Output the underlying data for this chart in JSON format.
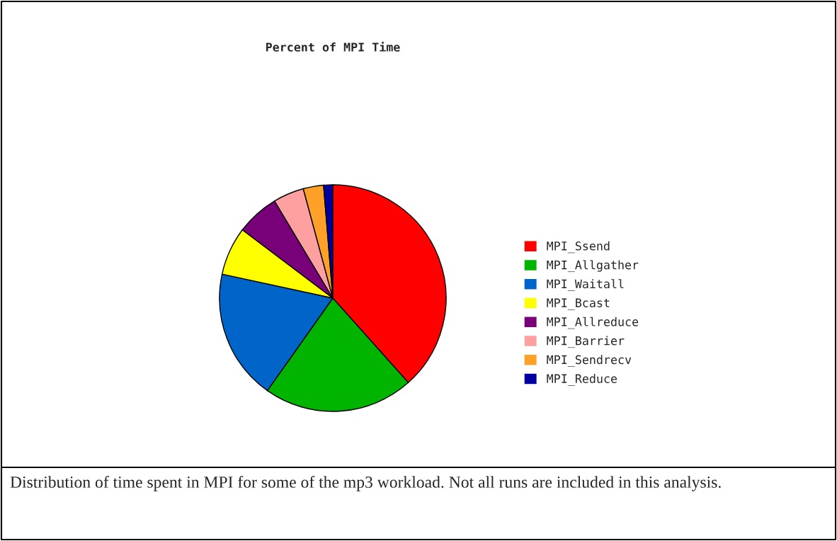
{
  "chart_data": {
    "type": "pie",
    "title": "Percent of MPI Time",
    "categories": [
      "MPI_Ssend",
      "MPI_Allgather",
      "MPI_Waitall",
      "MPI_Bcast",
      "MPI_Allreduce",
      "MPI_Barrier",
      "MPI_Sendrecv",
      "MPI_Reduce"
    ],
    "values": [
      38.4,
      21.4,
      18.6,
      6.9,
      6.1,
      4.4,
      2.9,
      1.3
    ],
    "colors": [
      "#ff0000",
      "#00b400",
      "#0064c8",
      "#ffff00",
      "#780078",
      "#ffa0a0",
      "#ffa028",
      "#0000a0"
    ],
    "legend": "right",
    "annotations": [
      "Distribution of time spent in MPI for some of the mp3 workload. Not all runs are included in this analysis."
    ]
  }
}
